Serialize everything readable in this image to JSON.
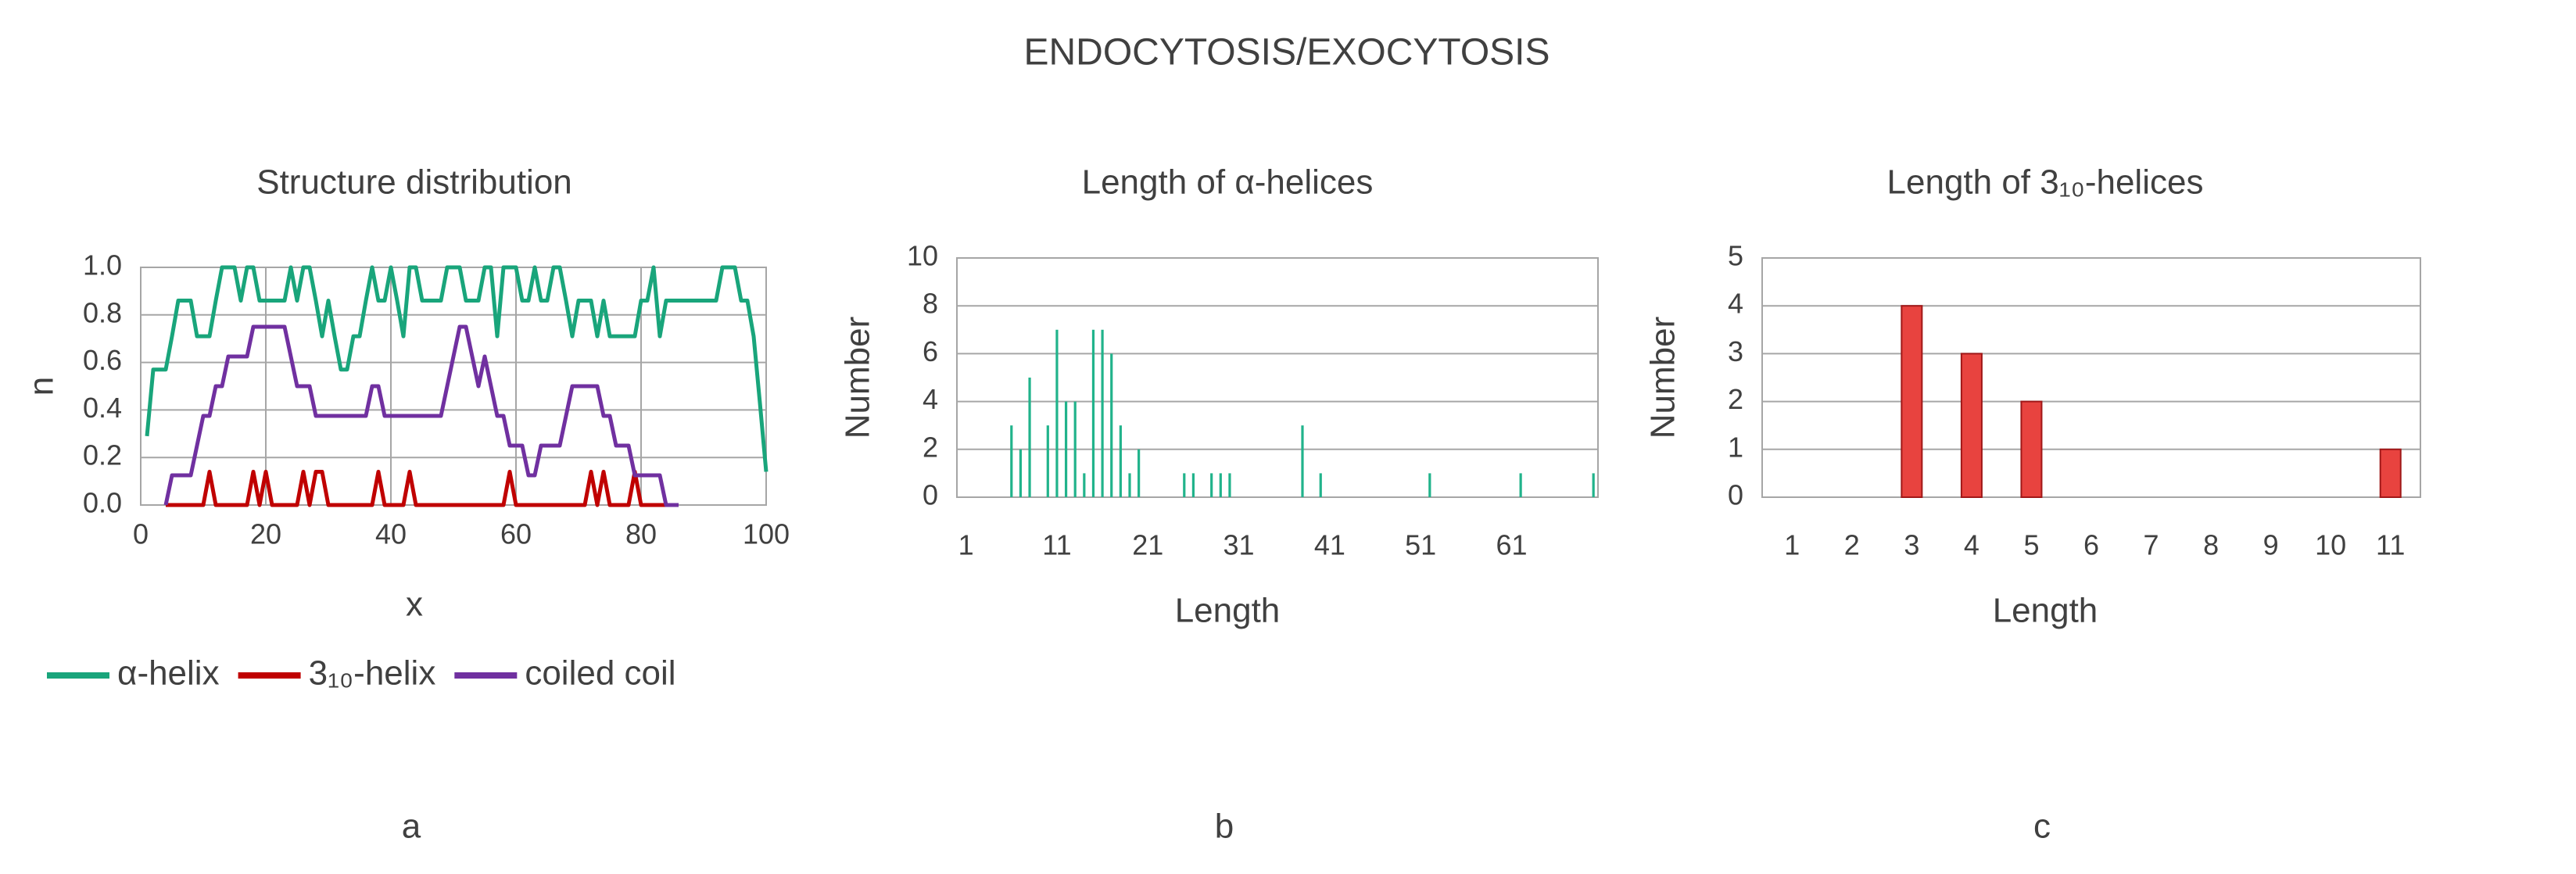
{
  "figure_title": "ENDOCYTOSIS/EXOCYTOSIS",
  "chart_data": [
    {
      "type": "line",
      "title": "Structure distribution",
      "panel_label": "a",
      "x_label": "x",
      "y_label": "n",
      "x": [
        1,
        2,
        3,
        4,
        5,
        6,
        7,
        8,
        9,
        10,
        11,
        12,
        13,
        14,
        15,
        16,
        17,
        18,
        19,
        20,
        21,
        22,
        23,
        24,
        25,
        26,
        27,
        28,
        29,
        30,
        31,
        32,
        33,
        34,
        35,
        36,
        37,
        38,
        39,
        40,
        41,
        42,
        43,
        44,
        45,
        46,
        47,
        48,
        49,
        50,
        51,
        52,
        53,
        54,
        55,
        56,
        57,
        58,
        59,
        60,
        61,
        62,
        63,
        64,
        65,
        66,
        67,
        68,
        69,
        70,
        71,
        72,
        73,
        74,
        75,
        76,
        77,
        78,
        79,
        80,
        81,
        82,
        83,
        84,
        85,
        86,
        87,
        88,
        89,
        90,
        91,
        92,
        93,
        94,
        95,
        96,
        97,
        98,
        99,
        100
      ],
      "xlim": [
        0,
        100
      ],
      "xticks": [
        0,
        20,
        40,
        60,
        80,
        100
      ],
      "ylim": [
        0,
        1
      ],
      "yticks": [
        {
          "value": 0,
          "label": "0.0"
        },
        0.2,
        0.4,
        0.6,
        0.8,
        {
          "value": 1,
          "label": "1.0"
        }
      ],
      "grid": "both",
      "legend": "bottom",
      "series": [
        {
          "name": "α-helix",
          "color": "#19a57b",
          "values": [
            0.29,
            0.57,
            0.57,
            0.57,
            0.71,
            0.86,
            0.86,
            0.86,
            0.71,
            0.71,
            0.71,
            0.86,
            1.0,
            1.0,
            1.0,
            0.86,
            1.0,
            1.0,
            0.86,
            0.86,
            0.86,
            0.86,
            0.86,
            1.0,
            0.86,
            1.0,
            1.0,
            0.86,
            0.71,
            0.86,
            0.71,
            0.57,
            0.57,
            0.71,
            0.71,
            0.86,
            1.0,
            0.86,
            0.86,
            1.0,
            0.86,
            0.71,
            1.0,
            1.0,
            0.86,
            0.86,
            0.86,
            0.86,
            1.0,
            1.0,
            1.0,
            0.86,
            0.86,
            0.86,
            1.0,
            1.0,
            0.71,
            1.0,
            1.0,
            1.0,
            0.86,
            0.86,
            1.0,
            0.86,
            0.86,
            1.0,
            1.0,
            0.86,
            0.71,
            0.86,
            0.86,
            0.86,
            0.71,
            0.86,
            0.71,
            0.71,
            0.71,
            0.71,
            0.71,
            0.86,
            0.86,
            1.0,
            0.71,
            0.86,
            0.86,
            0.86,
            0.86,
            0.86,
            0.86,
            0.86,
            0.86,
            0.86,
            1.0,
            1.0,
            1.0,
            0.86,
            0.86,
            0.71,
            0.43,
            0.14
          ]
        },
        {
          "name": "3₁₀-helix",
          "color": "#c00000",
          "values": [
            null,
            null,
            null,
            0,
            0,
            0,
            0,
            0,
            0,
            0,
            0.14,
            0,
            0,
            0,
            0,
            0,
            0,
            0.14,
            0,
            0.14,
            0,
            0,
            0,
            0,
            0,
            0.14,
            0,
            0.14,
            0.14,
            0,
            0,
            0,
            0,
            0,
            0,
            0,
            0,
            0.14,
            0,
            0,
            0,
            0,
            0.14,
            0,
            0,
            0,
            0,
            0,
            0,
            0,
            0,
            0,
            0,
            0,
            0,
            0,
            0,
            0,
            0.14,
            0,
            0,
            0,
            0,
            0,
            0,
            0,
            0,
            0,
            0,
            0,
            0,
            0.14,
            0,
            0.14,
            0,
            0,
            0,
            0,
            0.14,
            0,
            0,
            0,
            0,
            0,
            0,
            0,
            null,
            null,
            null,
            null,
            null,
            null,
            null,
            null,
            null,
            null,
            null,
            null,
            null,
            null
          ]
        },
        {
          "name": "coiled coil",
          "color": "#7030a0",
          "values": [
            null,
            null,
            null,
            0,
            0.125,
            0.125,
            0.125,
            0.125,
            0.25,
            0.375,
            0.375,
            0.5,
            0.5,
            0.625,
            0.625,
            0.625,
            0.625,
            0.75,
            0.75,
            0.75,
            0.75,
            0.75,
            0.75,
            0.625,
            0.5,
            0.5,
            0.5,
            0.375,
            0.375,
            0.375,
            0.375,
            0.375,
            0.375,
            0.375,
            0.375,
            0.375,
            0.5,
            0.5,
            0.375,
            0.375,
            0.375,
            0.375,
            0.375,
            0.375,
            0.375,
            0.375,
            0.375,
            0.375,
            0.5,
            0.625,
            0.75,
            0.75,
            0.625,
            0.5,
            0.625,
            0.5,
            0.375,
            0.375,
            0.25,
            0.25,
            0.25,
            0.125,
            0.125,
            0.25,
            0.25,
            0.25,
            0.25,
            0.375,
            0.5,
            0.5,
            0.5,
            0.5,
            0.5,
            0.375,
            0.375,
            0.25,
            0.25,
            0.25,
            0.125,
            0.125,
            0.125,
            0.125,
            0.125,
            0,
            0,
            0,
            null,
            null,
            null,
            null,
            null,
            null,
            null,
            null,
            null,
            null,
            null,
            null,
            null,
            null
          ]
        }
      ]
    },
    {
      "type": "bar",
      "title": "Length of α-helices",
      "panel_label": "b",
      "x_label": "Length",
      "y_label": "Number",
      "x": [
        6,
        7,
        8,
        10,
        11,
        12,
        13,
        14,
        15,
        16,
        17,
        18,
        19,
        20,
        25,
        26,
        28,
        29,
        30,
        38,
        40,
        52,
        62,
        70
      ],
      "values": [
        3,
        2,
        5,
        3,
        7,
        4,
        4,
        1,
        7,
        7,
        6,
        3,
        1,
        2,
        1,
        1,
        1,
        1,
        1,
        3,
        1,
        1,
        1,
        1
      ],
      "color": "#21b38b",
      "xlim": [
        0,
        70.5
      ],
      "xticks": [
        1,
        11,
        21,
        31,
        41,
        51,
        61
      ],
      "ylim": [
        0,
        10
      ],
      "yticks": [
        0,
        2,
        4,
        6,
        8,
        10
      ],
      "grid": "y"
    },
    {
      "type": "bar",
      "title": "Length of 3₁₀-helices",
      "panel_label": "c",
      "x_label": "Length",
      "y_label": "Number",
      "categories": [
        "1",
        "2",
        "3",
        "4",
        "5",
        "6",
        "7",
        "8",
        "9",
        "10",
        "11"
      ],
      "values": [
        0,
        0,
        4,
        3,
        2,
        0,
        0,
        0,
        0,
        0,
        1
      ],
      "color": "#e8433f",
      "ylim": [
        0,
        5
      ],
      "yticks": [
        0,
        1,
        2,
        3,
        4,
        5
      ],
      "grid": "y"
    }
  ]
}
